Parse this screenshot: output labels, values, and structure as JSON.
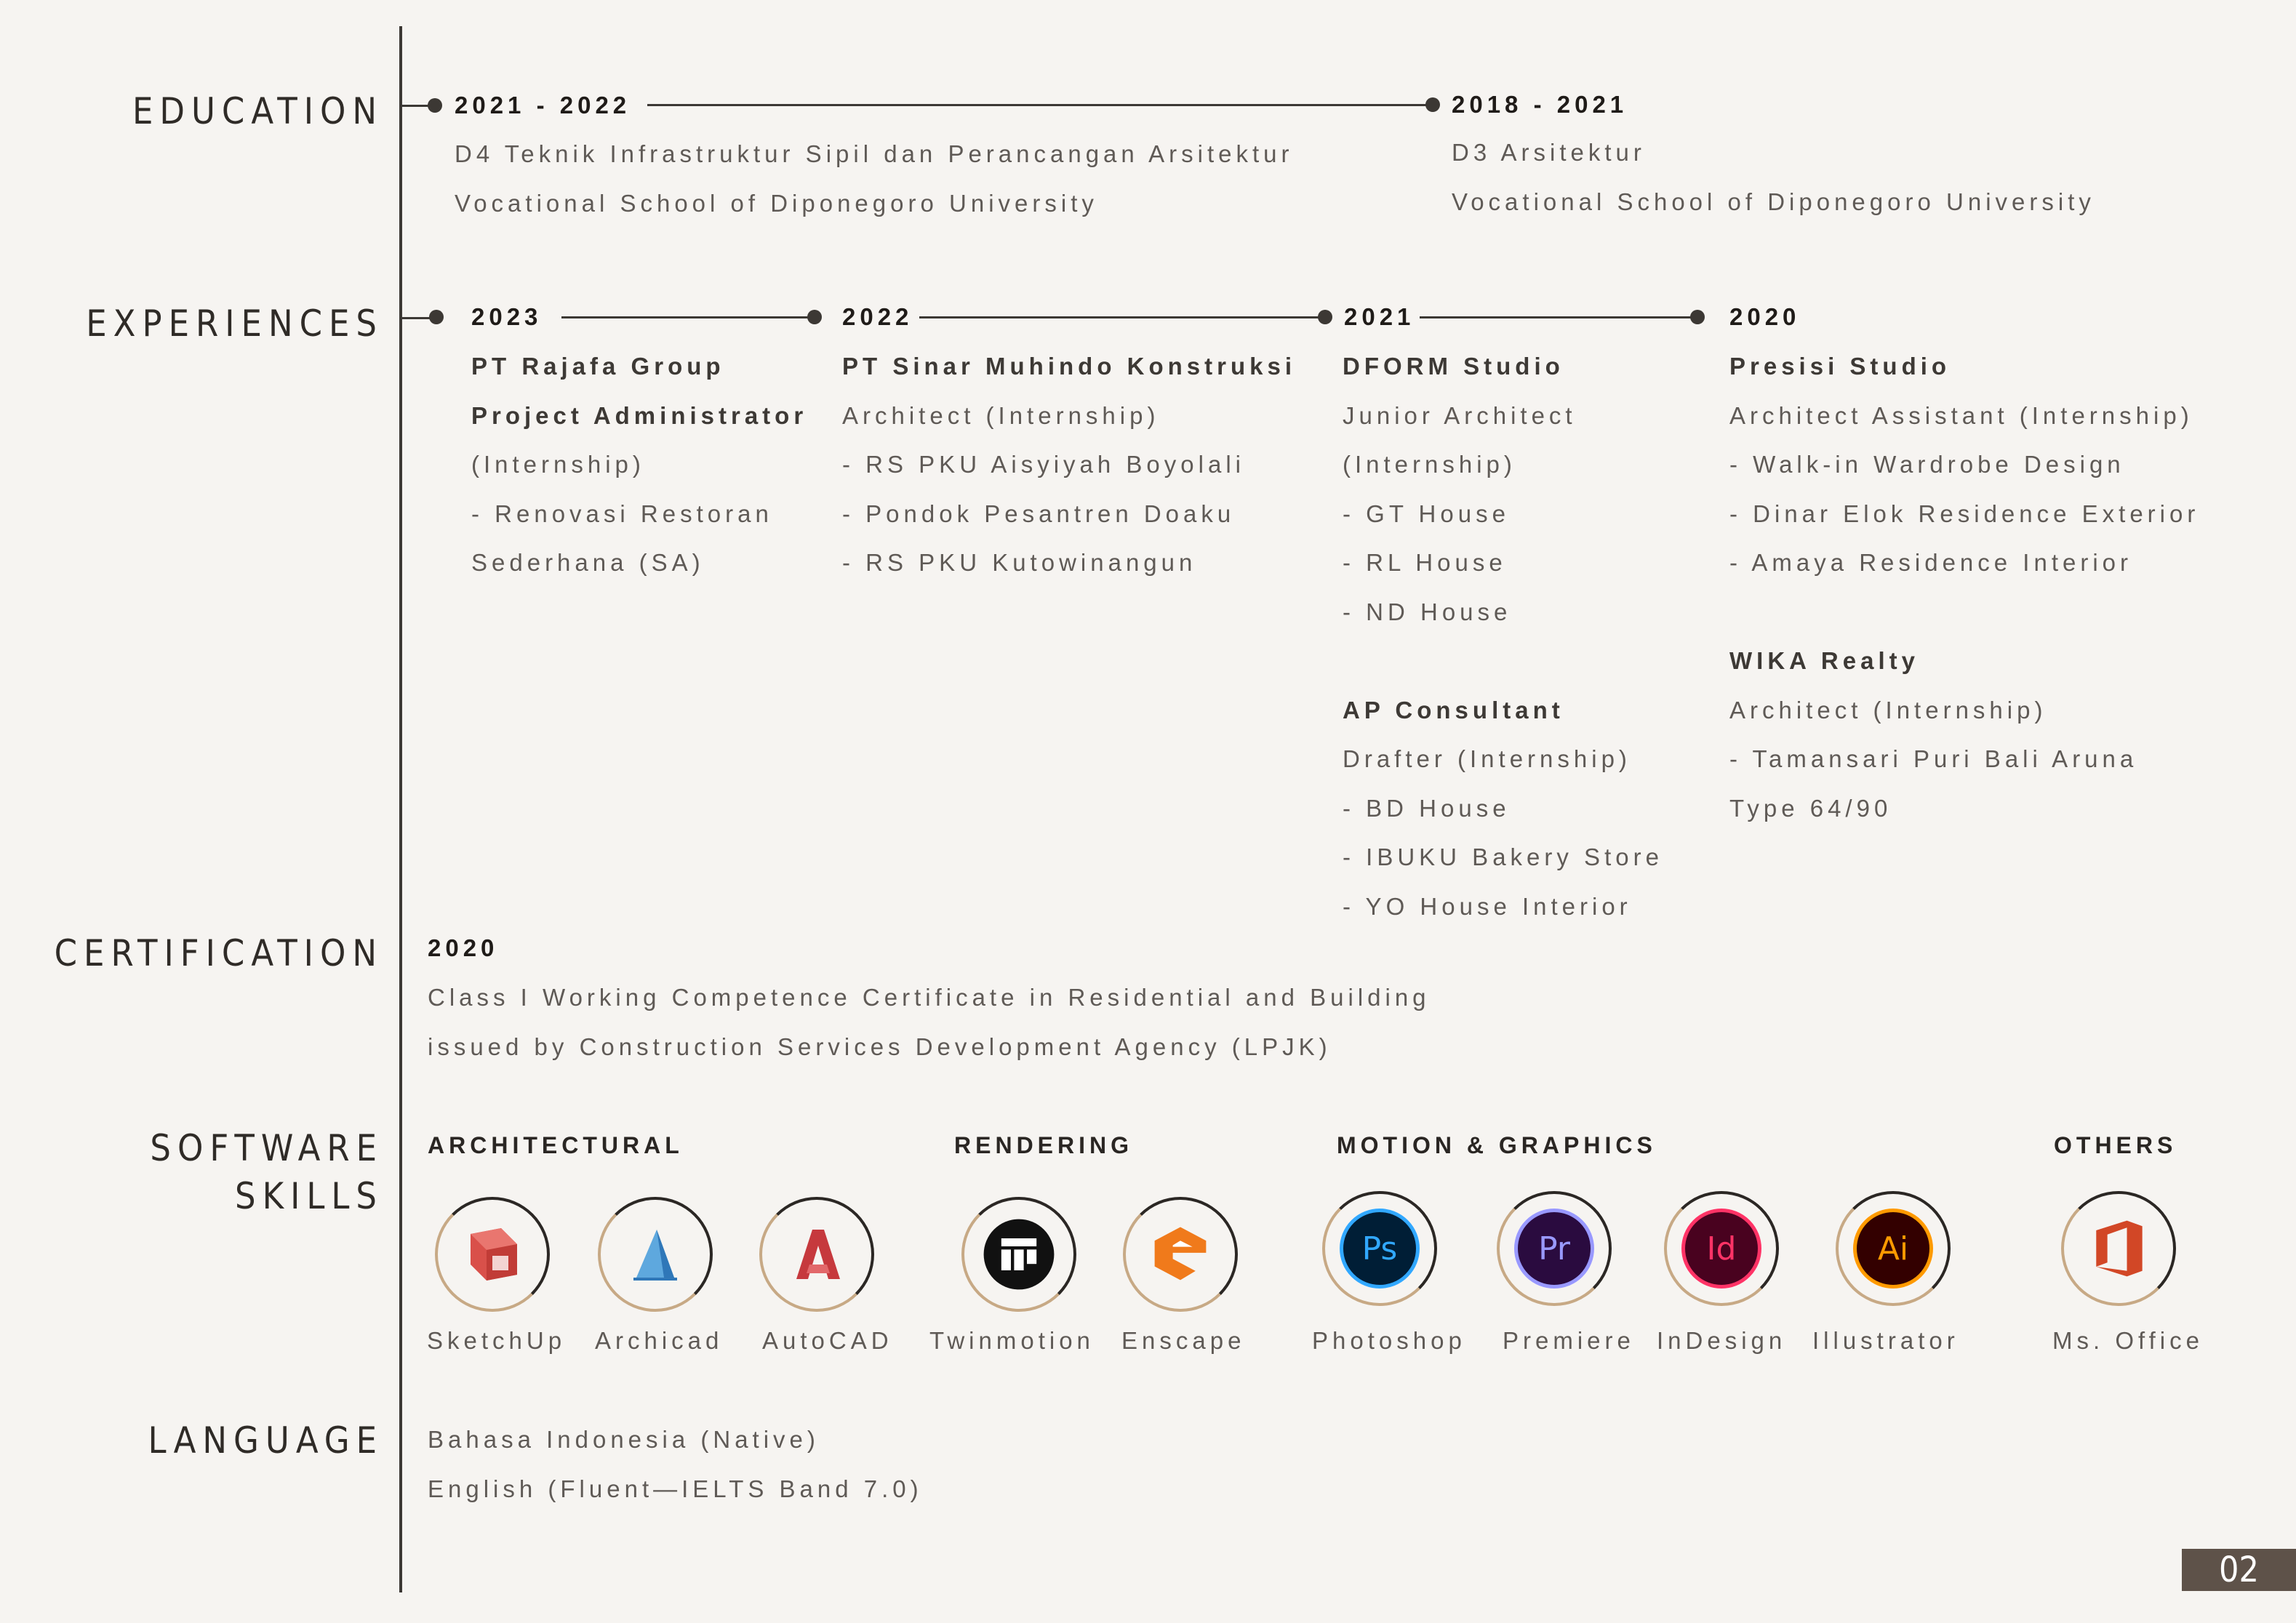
{
  "sections": {
    "education": "EDUCATION",
    "experiences": "EXPERIENCES",
    "certification": "CERTIFICATION",
    "software_1": "SOFTWARE",
    "software_2": "SKILLS",
    "language": "LANGUAGE"
  },
  "education": [
    {
      "years": "2021 - 2022",
      "lines": [
        "D4 Teknik Infrastruktur Sipil dan Perancangan Arsitektur",
        "Vocational School of Diponegoro University"
      ]
    },
    {
      "years": "2018 - 2021",
      "lines": [
        "D3 Arsitektur",
        "Vocational School of Diponegoro University"
      ]
    }
  ],
  "experiences": [
    {
      "year": "2023",
      "company": "PT Rajafa Group",
      "lines": [
        "Project Administrator",
        "(Internship)",
        "- Renovasi Restoran",
        "Sederhana (SA)"
      ]
    },
    {
      "year": "2022",
      "company": "PT Sinar Muhindo Konstruksi",
      "lines": [
        "Architect (Internship)",
        "- RS PKU Aisyiyah Boyolali",
        "- Pondok Pesantren Doaku",
        "- RS PKU Kutowinangun"
      ]
    },
    {
      "year": "2021",
      "company": "DFORM Studio",
      "lines": [
        "Junior Architect",
        "(Internship)",
        "- GT House",
        "- RL House",
        "- ND House"
      ],
      "company2": "AP Consultant",
      "lines2": [
        "Drafter (Internship)",
        "- BD House",
        "- IBUKU Bakery Store",
        "- YO House Interior"
      ]
    },
    {
      "year": "2020",
      "company": "Presisi Studio",
      "lines": [
        "Architect Assistant (Internship)",
        "- Walk-in Wardrobe Design",
        "- Dinar Elok Residence Exterior",
        "- Amaya Residence Interior"
      ],
      "company2": "WIKA Realty",
      "lines2": [
        "Architect (Internship)",
        "- Tamansari Puri Bali Aruna",
        "Type 64/90"
      ]
    }
  ],
  "certification": {
    "year": "2020",
    "lines": [
      "Class I Working Competence Certificate in Residential and Building",
      "issued by Construction Services Development Agency (LPJK)"
    ]
  },
  "software": {
    "categories": [
      "ARCHITECTURAL",
      "RENDERING",
      "MOTION & GRAPHICS",
      "OTHERS"
    ],
    "items": [
      {
        "name": "SketchUp",
        "icon": "sketchup-icon"
      },
      {
        "name": "Archicad",
        "icon": "archicad-icon"
      },
      {
        "name": "AutoCAD",
        "icon": "autocad-icon"
      },
      {
        "name": "Twinmotion",
        "icon": "twinmotion-icon"
      },
      {
        "name": "Enscape",
        "icon": "enscape-icon"
      },
      {
        "name": "Photoshop",
        "icon": "photoshop-icon",
        "glyph": "Ps"
      },
      {
        "name": "Premiere",
        "icon": "premiere-icon",
        "glyph": "Pr"
      },
      {
        "name": "InDesign",
        "icon": "indesign-icon",
        "glyph": "Id"
      },
      {
        "name": "Illustrator",
        "icon": "illustrator-icon",
        "glyph": "Ai"
      },
      {
        "name": "Ms. Office",
        "icon": "ms-office-icon"
      }
    ]
  },
  "language": [
    "Bahasa Indonesia (Native)",
    "English (Fluent—IELTS Band 7.0)"
  ],
  "page_number": "02",
  "colors": {
    "background": "#f6f4f1",
    "line": "#3c3834",
    "badge": "#5e5249",
    "photoshop": "#31a8ff",
    "premiere": "#9999ff",
    "indesign": "#ff3366",
    "illustrator": "#ff9a00",
    "sketchup": "#d9504a",
    "autocad": "#c6393d",
    "enscape": "#f07a1b",
    "office": "#d24726"
  }
}
